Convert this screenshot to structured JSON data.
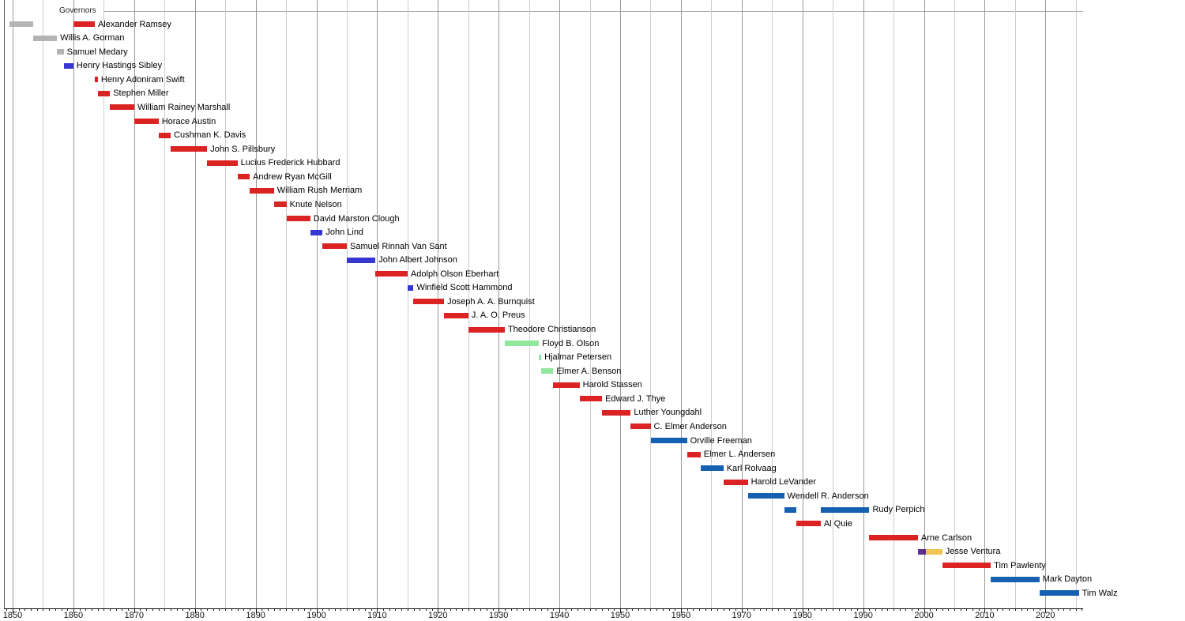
{
  "palette": {
    "territorial": "#b4b4b4",
    "republican": "#dc2323",
    "democratic": "#3636d2",
    "dfl": "#1560b0",
    "farmer_labor": "#90e89c",
    "independence": "#f0c455",
    "reform": "#5d2d91"
  },
  "chart_data": {
    "type": "bar",
    "variant": "gantt-timeline",
    "title": "Governors",
    "xlabel": "",
    "ylabel": "",
    "legend": "none",
    "grid": "on",
    "axis": {
      "domain_start": 1848.6,
      "domain_end": 2026.3,
      "grid_start": 1850,
      "grid_end": 2025,
      "grid_step": 5,
      "tick_start": 1849,
      "tick_end": 2026,
      "tick_labels": [
        "1850",
        "1860",
        "1870",
        "1880",
        "1890",
        "1900",
        "1910",
        "1920",
        "1930",
        "1940",
        "1950",
        "1960",
        "1970",
        "1980",
        "1990",
        "2000",
        "2010",
        "2020"
      ]
    },
    "rows": [
      {
        "name": "Alexander Ramsey",
        "segments": [
          {
            "start": 1849.42,
            "end": 1853.37,
            "party": "territorial"
          },
          {
            "start": 1860.0,
            "end": 1863.52,
            "party": "republican"
          }
        ]
      },
      {
        "name": "Willis A. Gorman",
        "segments": [
          {
            "start": 1853.37,
            "end": 1857.31,
            "party": "territorial"
          }
        ]
      },
      {
        "name": "Samuel Medary",
        "segments": [
          {
            "start": 1857.31,
            "end": 1858.4,
            "party": "territorial"
          }
        ]
      },
      {
        "name": "Henry Hastings Sibley",
        "segments": [
          {
            "start": 1858.4,
            "end": 1860.0,
            "party": "democratic"
          }
        ]
      },
      {
        "name": "Henry Adoniram Swift",
        "segments": [
          {
            "start": 1863.52,
            "end": 1864.03,
            "party": "republican"
          }
        ]
      },
      {
        "name": "Stephen Miller",
        "segments": [
          {
            "start": 1864.03,
            "end": 1866.02,
            "party": "republican"
          }
        ]
      },
      {
        "name": "William Rainey Marshall",
        "segments": [
          {
            "start": 1866.02,
            "end": 1870.02,
            "party": "republican"
          }
        ]
      },
      {
        "name": "Horace Austin",
        "segments": [
          {
            "start": 1870.02,
            "end": 1874.02,
            "party": "republican"
          }
        ]
      },
      {
        "name": "Cushman K. Davis",
        "segments": [
          {
            "start": 1874.02,
            "end": 1876.02,
            "party": "republican"
          }
        ]
      },
      {
        "name": "John S. Pillsbury",
        "segments": [
          {
            "start": 1876.02,
            "end": 1882.03,
            "party": "republican"
          }
        ]
      },
      {
        "name": "Lucius Frederick Hubbard",
        "segments": [
          {
            "start": 1882.03,
            "end": 1887.01,
            "party": "republican"
          }
        ]
      },
      {
        "name": "Andrew Ryan McGill",
        "segments": [
          {
            "start": 1887.01,
            "end": 1889.02,
            "party": "republican"
          }
        ]
      },
      {
        "name": "William Rush Merriam",
        "segments": [
          {
            "start": 1889.02,
            "end": 1893.01,
            "party": "republican"
          }
        ]
      },
      {
        "name": "Knute Nelson",
        "segments": [
          {
            "start": 1893.01,
            "end": 1895.08,
            "party": "republican"
          }
        ]
      },
      {
        "name": "David Marston Clough",
        "segments": [
          {
            "start": 1895.08,
            "end": 1899.0,
            "party": "republican"
          }
        ]
      },
      {
        "name": "John Lind",
        "segments": [
          {
            "start": 1899.0,
            "end": 1901.02,
            "party": "democratic"
          }
        ]
      },
      {
        "name": "Samuel Rinnah Van Sant",
        "segments": [
          {
            "start": 1901.02,
            "end": 1905.01,
            "party": "republican"
          }
        ]
      },
      {
        "name": "John Albert Johnson",
        "segments": [
          {
            "start": 1905.01,
            "end": 1909.72,
            "party": "democratic"
          }
        ]
      },
      {
        "name": "Adolph Olson Eberhart",
        "segments": [
          {
            "start": 1909.72,
            "end": 1915.01,
            "party": "republican"
          }
        ]
      },
      {
        "name": "Winfield Scott Hammond",
        "segments": [
          {
            "start": 1915.01,
            "end": 1915.99,
            "party": "democratic"
          }
        ]
      },
      {
        "name": "Joseph A. A. Burnquist",
        "segments": [
          {
            "start": 1915.99,
            "end": 1921.01,
            "party": "republican"
          }
        ]
      },
      {
        "name": "J. A. O. Preus",
        "segments": [
          {
            "start": 1921.01,
            "end": 1925.01,
            "party": "republican"
          }
        ]
      },
      {
        "name": "Theodore Christianson",
        "segments": [
          {
            "start": 1925.01,
            "end": 1931.01,
            "party": "republican"
          }
        ]
      },
      {
        "name": "Floyd B. Olson",
        "segments": [
          {
            "start": 1931.01,
            "end": 1936.64,
            "party": "farmer_labor"
          }
        ]
      },
      {
        "name": "Hjalmar Petersen",
        "segments": [
          {
            "start": 1936.64,
            "end": 1937.01,
            "party": "farmer_labor"
          }
        ]
      },
      {
        "name": "Elmer A. Benson",
        "segments": [
          {
            "start": 1937.01,
            "end": 1939.0,
            "party": "farmer_labor"
          }
        ]
      },
      {
        "name": "Harold Stassen",
        "segments": [
          {
            "start": 1939.0,
            "end": 1943.32,
            "party": "republican"
          }
        ]
      },
      {
        "name": "Edward J. Thye",
        "segments": [
          {
            "start": 1943.32,
            "end": 1947.02,
            "party": "republican"
          }
        ]
      },
      {
        "name": "Luther Youngdahl",
        "segments": [
          {
            "start": 1947.02,
            "end": 1951.74,
            "party": "republican"
          }
        ]
      },
      {
        "name": "C. Elmer Anderson",
        "segments": [
          {
            "start": 1951.74,
            "end": 1955.01,
            "party": "republican"
          }
        ]
      },
      {
        "name": "Orville Freeman",
        "segments": [
          {
            "start": 1955.01,
            "end": 1961.0,
            "party": "dfl"
          }
        ]
      },
      {
        "name": "Elmer L. Andersen",
        "segments": [
          {
            "start": 1961.0,
            "end": 1963.23,
            "party": "republican"
          }
        ]
      },
      {
        "name": "Karl Rolvaag",
        "segments": [
          {
            "start": 1963.23,
            "end": 1967.0,
            "party": "dfl"
          }
        ]
      },
      {
        "name": "Harold LeVander",
        "segments": [
          {
            "start": 1967.0,
            "end": 1971.01,
            "party": "republican"
          }
        ]
      },
      {
        "name": "Wendell R. Anderson",
        "segments": [
          {
            "start": 1971.01,
            "end": 1976.99,
            "party": "dfl"
          }
        ]
      },
      {
        "name": "Rudy Perpich",
        "segments": [
          {
            "start": 1976.99,
            "end": 1979.01,
            "party": "dfl"
          },
          {
            "start": 1983.01,
            "end": 1991.02,
            "party": "dfl"
          }
        ]
      },
      {
        "name": "Al Quie",
        "segments": [
          {
            "start": 1979.01,
            "end": 1983.01,
            "party": "republican"
          }
        ]
      },
      {
        "name": "Arne Carlson",
        "segments": [
          {
            "start": 1991.02,
            "end": 1999.01,
            "party": "republican"
          }
        ]
      },
      {
        "name": "Jesse Ventura",
        "segments": [
          {
            "start": 1999.01,
            "end": 2000.3,
            "party": "reform"
          },
          {
            "start": 2000.3,
            "end": 2003.02,
            "party": "independence"
          }
        ]
      },
      {
        "name": "Tim Pawlenty",
        "segments": [
          {
            "start": 2003.02,
            "end": 2011.01,
            "party": "republican"
          }
        ]
      },
      {
        "name": "Mark Dayton",
        "segments": [
          {
            "start": 2011.01,
            "end": 2019.02,
            "party": "dfl"
          }
        ]
      },
      {
        "name": "Tim Walz",
        "segments": [
          {
            "start": 2019.02,
            "end": 2025.5,
            "party": "dfl"
          }
        ]
      }
    ]
  }
}
